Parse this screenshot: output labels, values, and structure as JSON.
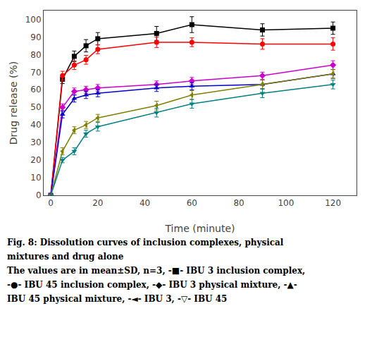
{
  "chart_data": {
    "type": "line",
    "xlabel": "Time (minute)",
    "ylabel": "Drug release (%)",
    "x": [
      0,
      5,
      10,
      15,
      20,
      45,
      60,
      90,
      120
    ],
    "series": [
      {
        "name": "IBU 3 inclusion complex",
        "color": "#000000",
        "marker": "square",
        "values": [
          0,
          66,
          79,
          85,
          89,
          92,
          97,
          94,
          95
        ],
        "yerr": [
          0,
          2.5,
          3.0,
          3.5,
          3.5,
          4.0,
          4.5,
          3.5,
          3.5
        ]
      },
      {
        "name": "IBU 45 inclusion complex",
        "color": "#ff0000",
        "marker": "circle",
        "values": [
          0,
          68,
          74,
          77,
          83,
          87,
          87,
          86,
          86
        ],
        "yerr": [
          0,
          2.5,
          2.5,
          2.5,
          2.5,
          3.0,
          2.5,
          3.0,
          3.5
        ]
      },
      {
        "name": "IBU 3 physical mixture",
        "color": "#cc00cc",
        "marker": "diamond",
        "values": [
          0,
          50,
          59,
          60,
          61,
          63,
          65,
          68,
          74
        ],
        "yerr": [
          0,
          2.0,
          2.0,
          2.0,
          2.0,
          2.0,
          2.0,
          2.0,
          2.5
        ]
      },
      {
        "name": "IBU 45 physical mixture",
        "color": "#0000cc",
        "marker": "triangle-up",
        "values": [
          0,
          46,
          55,
          57,
          58,
          61,
          62,
          63,
          69
        ],
        "yerr": [
          0,
          2.0,
          2.0,
          2.0,
          2.0,
          2.0,
          2.0,
          2.5,
          2.5
        ]
      },
      {
        "name": "IBU 3",
        "color": "#808000",
        "marker": "triangle-left",
        "values": [
          0,
          25,
          37,
          40,
          44,
          51,
          57,
          63,
          69
        ],
        "yerr": [
          0,
          2.0,
          2.0,
          2.0,
          2.0,
          2.5,
          2.5,
          2.5,
          2.5
        ]
      },
      {
        "name": "IBU 45",
        "color": "#008080",
        "marker": "triangle-down",
        "values": [
          0,
          20,
          25,
          35,
          39,
          47,
          52,
          58,
          63
        ],
        "yerr": [
          0,
          1.5,
          2.0,
          2.0,
          2.5,
          2.5,
          2.5,
          2.5,
          2.5
        ]
      }
    ],
    "xlim": [
      -3,
      130
    ],
    "ylim": [
      0,
      105
    ],
    "xticks": [
      0,
      20,
      40,
      60,
      80,
      100,
      120
    ],
    "yticks": [
      0,
      10,
      20,
      30,
      40,
      50,
      60,
      70,
      80,
      90,
      100
    ],
    "grid": false,
    "annotations": [
      "Fig. 8: Dissolution curves of inclusion complexes, physical",
      "mixtures and drug alone",
      "The values are in mean±SD, n=3, -■- IBU 3 inclusion complex,",
      "-●- IBU 45 inclusion complex, -◆- IBU 3 physical mixture, -▲-",
      "IBU 45 physical mixture, -◄- IBU 3, -▽- IBU 45"
    ]
  }
}
